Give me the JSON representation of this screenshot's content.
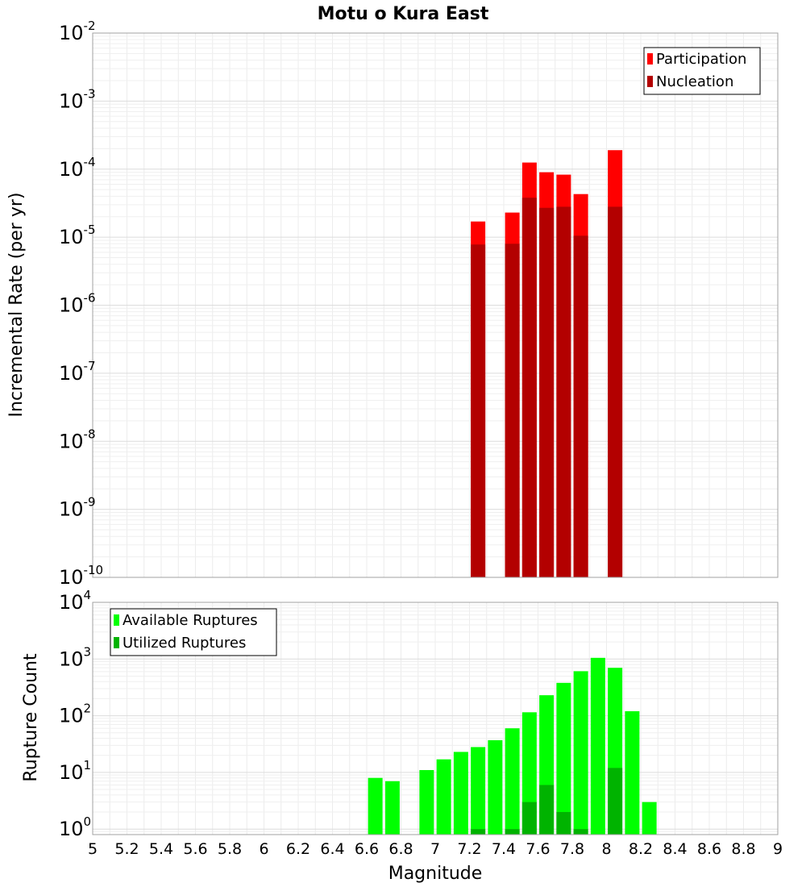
{
  "chart_data": [
    {
      "type": "bar",
      "title": "Motu o Kura East",
      "xlabel": "",
      "ylabel": "Incremental Rate (per yr)",
      "yscale": "log",
      "ylim": [
        1e-10,
        0.01
      ],
      "xlim": [
        5,
        9
      ],
      "grid": true,
      "legend_position": "top-right",
      "y_tick_labels": [
        {
          "base": "10",
          "exp": "-2"
        },
        {
          "base": "10",
          "exp": "-3"
        },
        {
          "base": "10",
          "exp": "-4"
        },
        {
          "base": "10",
          "exp": "-5"
        },
        {
          "base": "10",
          "exp": "-6"
        },
        {
          "base": "10",
          "exp": "-7"
        },
        {
          "base": "10",
          "exp": "-8"
        },
        {
          "base": "10",
          "exp": "-9"
        },
        {
          "base": "10",
          "exp": "-10"
        }
      ],
      "series": [
        {
          "name": "Participation",
          "color": "#ff0000",
          "points": [
            {
              "x": 7.25,
              "y": 1.7e-05
            },
            {
              "x": 7.45,
              "y": 2.3e-05
            },
            {
              "x": 7.55,
              "y": 0.000125
            },
            {
              "x": 7.65,
              "y": 9e-05
            },
            {
              "x": 7.75,
              "y": 8.3e-05
            },
            {
              "x": 7.85,
              "y": 4.3e-05
            },
            {
              "x": 8.05,
              "y": 0.00019
            }
          ]
        },
        {
          "name": "Nucleation",
          "color": "#b30000",
          "points": [
            {
              "x": 7.25,
              "y": 7.8e-06
            },
            {
              "x": 7.45,
              "y": 8e-06
            },
            {
              "x": 7.55,
              "y": 3.8e-05
            },
            {
              "x": 7.65,
              "y": 2.7e-05
            },
            {
              "x": 7.75,
              "y": 2.8e-05
            },
            {
              "x": 7.85,
              "y": 1.05e-05
            },
            {
              "x": 8.05,
              "y": 2.8e-05
            }
          ]
        }
      ]
    },
    {
      "type": "bar",
      "title": "",
      "xlabel": "Magnitude",
      "ylabel": "Rupture Count",
      "yscale": "log",
      "ylim": [
        0.8,
        10000
      ],
      "xlim": [
        5,
        9
      ],
      "grid": true,
      "legend_position": "top-left",
      "x_ticks": [
        "5",
        "5.2",
        "5.4",
        "5.6",
        "5.8",
        "6",
        "6.2",
        "6.4",
        "6.6",
        "6.8",
        "7",
        "7.2",
        "7.4",
        "7.6",
        "7.8",
        "8",
        "8.2",
        "8.4",
        "8.6",
        "8.8",
        "9"
      ],
      "y_tick_labels": [
        {
          "base": "10",
          "exp": "4"
        },
        {
          "base": "10",
          "exp": "3"
        },
        {
          "base": "10",
          "exp": "2"
        },
        {
          "base": "10",
          "exp": "1"
        },
        {
          "base": "10",
          "exp": "0"
        }
      ],
      "series": [
        {
          "name": "Available Ruptures",
          "color": "#00ff00",
          "points": [
            {
              "x": 6.65,
              "y": 8
            },
            {
              "x": 6.75,
              "y": 7
            },
            {
              "x": 6.95,
              "y": 11
            },
            {
              "x": 7.05,
              "y": 17
            },
            {
              "x": 7.15,
              "y": 23
            },
            {
              "x": 7.25,
              "y": 28
            },
            {
              "x": 7.35,
              "y": 37
            },
            {
              "x": 7.45,
              "y": 60
            },
            {
              "x": 7.55,
              "y": 115
            },
            {
              "x": 7.65,
              "y": 230
            },
            {
              "x": 7.75,
              "y": 380
            },
            {
              "x": 7.85,
              "y": 610
            },
            {
              "x": 7.95,
              "y": 1050
            },
            {
              "x": 8.05,
              "y": 700
            },
            {
              "x": 8.15,
              "y": 120
            },
            {
              "x": 8.25,
              "y": 3
            }
          ]
        },
        {
          "name": "Utilized Ruptures",
          "color": "#00b300",
          "points": [
            {
              "x": 7.25,
              "y": 1
            },
            {
              "x": 7.45,
              "y": 1
            },
            {
              "x": 7.55,
              "y": 3
            },
            {
              "x": 7.65,
              "y": 6
            },
            {
              "x": 7.75,
              "y": 2
            },
            {
              "x": 7.85,
              "y": 1
            },
            {
              "x": 8.05,
              "y": 12
            }
          ]
        }
      ]
    }
  ]
}
